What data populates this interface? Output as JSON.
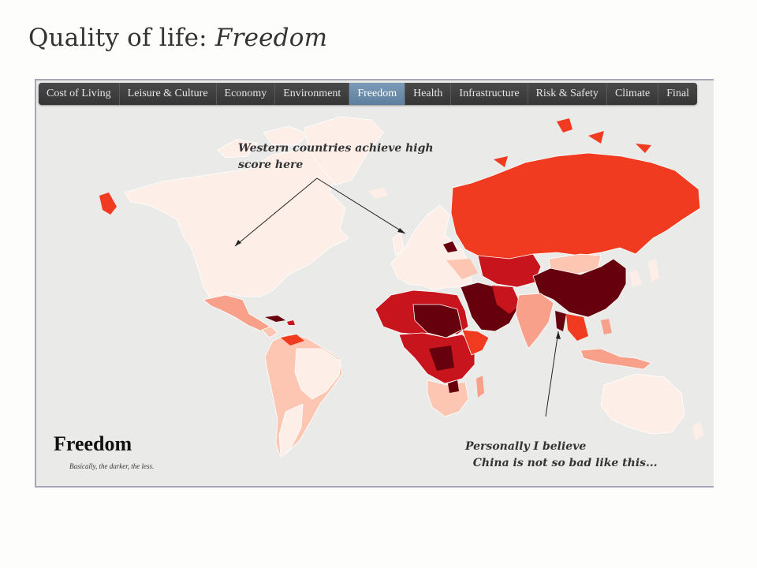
{
  "title": {
    "prefix": "Quality of life: ",
    "emphasis": "Freedom"
  },
  "tabs": [
    {
      "label": "Cost of Living",
      "active": false
    },
    {
      "label": "Leisure & Culture",
      "active": false
    },
    {
      "label": "Economy",
      "active": false
    },
    {
      "label": "Environment",
      "active": false
    },
    {
      "label": "Freedom",
      "active": true
    },
    {
      "label": "Health",
      "active": false
    },
    {
      "label": "Infrastructure",
      "active": false
    },
    {
      "label": "Risk & Safety",
      "active": false
    },
    {
      "label": "Climate",
      "active": false
    },
    {
      "label": "Final",
      "active": false
    }
  ],
  "annotations": {
    "western": "Western countries achieve high\nscore here",
    "china": "Personally I believe\n  China is not so bad like this..."
  },
  "legend": {
    "title": "Freedom",
    "subtitle": "Basically, the darker, the less."
  },
  "colors": {
    "ocean": "#eaebe8",
    "high_freedom": "#fdeee8",
    "mid_high": "#fcc6b2",
    "mid": "#f8a08a",
    "low": "#f03b20",
    "lower": "#c8141c",
    "lowest": "#67000d"
  }
}
